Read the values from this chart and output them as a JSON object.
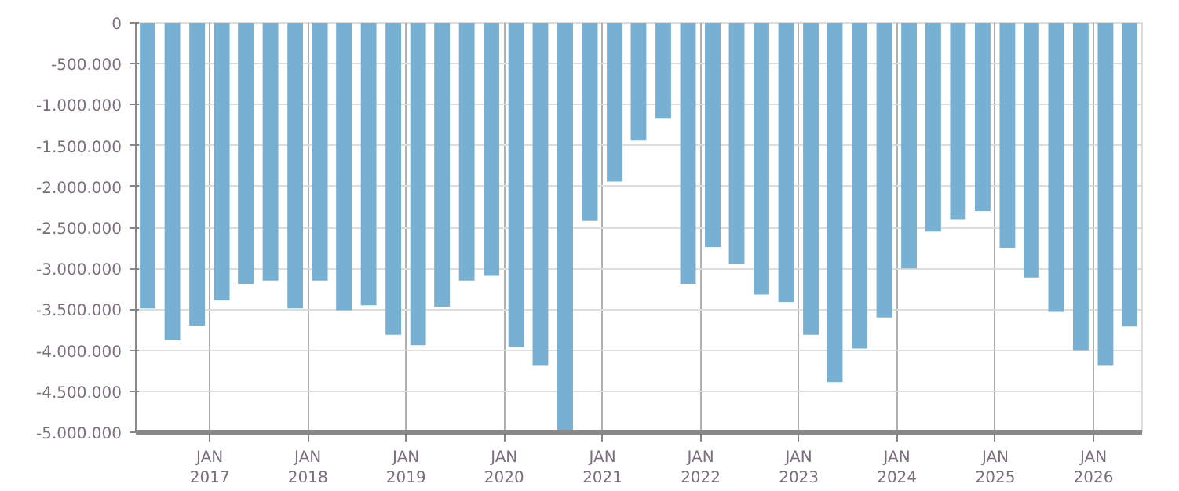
{
  "chart_data": {
    "type": "bar",
    "x": [
      "2016-05-15",
      "2016-08-15",
      "2016-11-15",
      "2017-02-15",
      "2017-05-15",
      "2017-08-15",
      "2017-11-15",
      "2018-02-15",
      "2018-05-15",
      "2018-08-15",
      "2018-11-15",
      "2019-02-15",
      "2019-05-15",
      "2019-08-15",
      "2019-11-15",
      "2020-02-15",
      "2020-05-15",
      "2020-08-15",
      "2020-11-15",
      "2021-02-15",
      "2021-05-15",
      "2021-08-15",
      "2021-11-15",
      "2022-02-15",
      "2022-05-15",
      "2022-08-15",
      "2022-11-15",
      "2023-02-15",
      "2023-05-15",
      "2023-08-15",
      "2023-11-15",
      "2024-02-15",
      "2024-05-15",
      "2024-08-15",
      "2024-11-15",
      "2025-02-15",
      "2025-05-15",
      "2025-08-15",
      "2025-11-15",
      "2026-02-15",
      "2026-05-15"
    ],
    "values": [
      -3490000,
      -3880000,
      -3700000,
      -3390000,
      -3190000,
      -3150000,
      -3490000,
      -3150000,
      -3510000,
      -3450000,
      -3810000,
      -3940000,
      -3470000,
      -3150000,
      -3090000,
      -3960000,
      -4180000,
      -5000000,
      -2420000,
      -1940000,
      -1440000,
      -1170000,
      -3190000,
      -2740000,
      -2940000,
      -3320000,
      -3410000,
      -3810000,
      -4390000,
      -3980000,
      -3600000,
      -3000000,
      -2550000,
      -2400000,
      -2300000,
      -2750000,
      -3110000,
      -3530000,
      -4000000,
      -4180000,
      -3710000
    ],
    "color": "#78b0d3",
    "xlim": [
      "2016-04-01",
      "2026-07-01"
    ],
    "xticks": [
      {
        "value": "2017-01-01",
        "label": "JAN\n2017"
      },
      {
        "value": "2018-01-01",
        "label": "JAN\n2018"
      },
      {
        "value": "2019-01-01",
        "label": "JAN\n2019"
      },
      {
        "value": "2020-01-01",
        "label": "JAN\n2020"
      },
      {
        "value": "2021-01-01",
        "label": "JAN\n2021"
      },
      {
        "value": "2022-01-01",
        "label": "JAN\n2022"
      },
      {
        "value": "2023-01-01",
        "label": "JAN\n2023"
      },
      {
        "value": "2024-01-01",
        "label": "JAN\n2024"
      },
      {
        "value": "2025-01-01",
        "label": "JAN\n2025"
      },
      {
        "value": "2026-01-01",
        "label": "JAN\n2026"
      }
    ],
    "ylim": [
      -5000000,
      0
    ],
    "yticks": [
      {
        "value": -5000000,
        "label": "-5.000.000"
      },
      {
        "value": -4500000,
        "label": "-4.500.000"
      },
      {
        "value": -4000000,
        "label": "-4.000.000"
      },
      {
        "value": -3500000,
        "label": "-3.500.000"
      },
      {
        "value": -3000000,
        "label": "-3.000.000"
      },
      {
        "value": -2500000,
        "label": "-2.500.000"
      },
      {
        "value": -2000000,
        "label": "-2.000.000"
      },
      {
        "value": -1500000,
        "label": "-1.500.000"
      },
      {
        "value": -1000000,
        "label": "-1.000.000"
      },
      {
        "value": -500000,
        "label": "-500.000"
      },
      0
    ],
    "grid": true
  }
}
